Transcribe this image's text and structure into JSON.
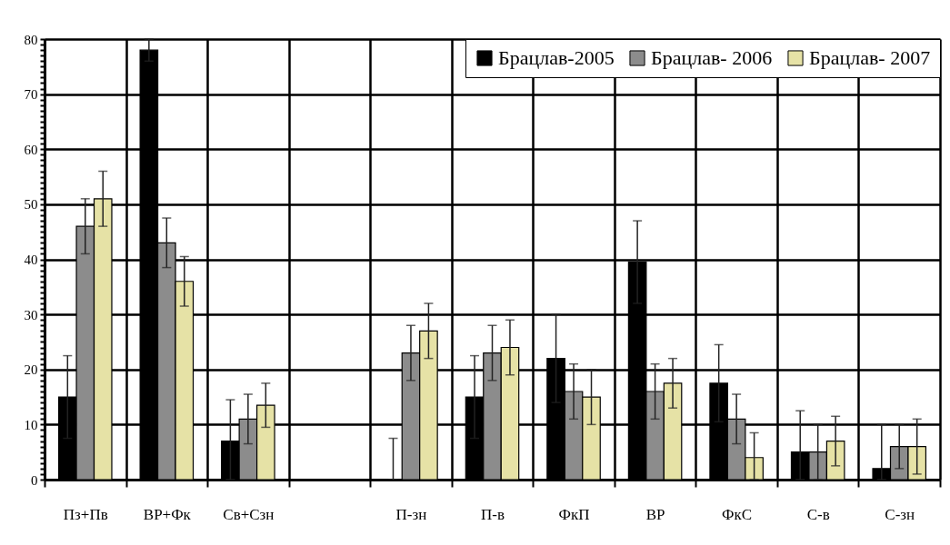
{
  "chart_data": {
    "type": "bar",
    "categories": [
      "Пз+Пв",
      "ВР+Фк",
      "Св+Сзн",
      null,
      "П-зн",
      "П-в",
      "ФкП",
      "ВР",
      "ФкС",
      "С-в",
      "С-зн"
    ],
    "series": [
      {
        "name": "Брацлав-2005",
        "color": "#000000",
        "values": [
          15,
          78,
          7,
          null,
          0,
          15,
          22,
          39.5,
          17.5,
          5,
          2
        ],
        "errors": [
          7.5,
          2,
          [
            0,
            14.5
          ],
          null,
          [
            0,
            7.5
          ],
          7.5,
          8,
          7.5,
          7,
          [
            0,
            12.5
          ],
          [
            0,
            10
          ]
        ]
      },
      {
        "name": "Брацлав- 2006",
        "color": "#8c8c8c",
        "values": [
          46,
          43,
          11,
          null,
          23,
          23,
          16,
          16,
          11,
          5,
          6
        ],
        "errors": [
          5,
          4.5,
          4.5,
          null,
          5,
          5,
          5,
          5,
          4.5,
          5,
          4
        ]
      },
      {
        "name": "Брацлав- 2007",
        "color": "#e6e2a6",
        "values": [
          51,
          36,
          13.5,
          null,
          27,
          24,
          15,
          17.5,
          4,
          7,
          6
        ],
        "errors": [
          5,
          4.5,
          4,
          null,
          5,
          5,
          5,
          4.5,
          [
            0,
            8.5
          ],
          4.5,
          5
        ]
      }
    ],
    "ylim": [
      0,
      80
    ],
    "yticks": [
      0,
      {
        "value": 1,
        "label": null
      },
      {
        "value": 2,
        "label": null
      },
      {
        "value": 3,
        "label": null
      },
      {
        "value": 4,
        "label": null
      },
      {
        "value": 5,
        "label": null
      },
      {
        "value": 6,
        "label": null
      },
      {
        "value": 7,
        "label": null
      },
      {
        "value": 8,
        "label": null
      },
      {
        "value": 9,
        "label": null
      },
      10,
      {
        "value": 11,
        "label": null
      },
      {
        "value": 12,
        "label": null
      },
      {
        "value": 13,
        "label": null
      },
      {
        "value": 14,
        "label": null
      },
      {
        "value": 15,
        "label": null
      },
      {
        "value": 16,
        "label": null
      },
      {
        "value": 17,
        "label": null
      },
      {
        "value": 18,
        "label": null
      },
      {
        "value": 19,
        "label": null
      },
      20,
      {
        "value": 21,
        "label": null
      },
      {
        "value": 22,
        "label": null
      },
      {
        "value": 23,
        "label": null
      },
      {
        "value": 24,
        "label": null
      },
      {
        "value": 25,
        "label": null
      },
      {
        "value": 26,
        "label": null
      },
      {
        "value": 27,
        "label": null
      },
      {
        "value": 28,
        "label": null
      },
      {
        "value": 29,
        "label": null
      },
      30,
      {
        "value": 31,
        "label": null
      },
      {
        "value": 32,
        "label": null
      },
      {
        "value": 33,
        "label": null
      },
      {
        "value": 34,
        "label": null
      },
      {
        "value": 35,
        "label": null
      },
      {
        "value": 36,
        "label": null
      },
      {
        "value": 37,
        "label": null
      },
      {
        "value": 38,
        "label": null
      },
      {
        "value": 39,
        "label": null
      },
      40,
      {
        "value": 41,
        "label": null
      },
      {
        "value": 42,
        "label": null
      },
      {
        "value": 43,
        "label": null
      },
      {
        "value": 44,
        "label": null
      },
      {
        "value": 45,
        "label": null
      },
      {
        "value": 46,
        "label": null
      },
      {
        "value": 47,
        "label": null
      },
      {
        "value": 48,
        "label": null
      },
      {
        "value": 49,
        "label": null
      },
      50,
      {
        "value": 51,
        "label": null
      },
      {
        "value": 52,
        "label": null
      },
      {
        "value": 53,
        "label": null
      },
      {
        "value": 54,
        "label": null
      },
      {
        "value": 55,
        "label": null
      },
      {
        "value": 56,
        "label": null
      },
      {
        "value": 57,
        "label": null
      },
      {
        "value": 58,
        "label": null
      },
      {
        "value": 59,
        "label": null
      },
      60,
      {
        "value": 61,
        "label": null
      },
      {
        "value": 62,
        "label": null
      },
      {
        "value": 63,
        "label": null
      },
      {
        "value": 64,
        "label": null
      },
      {
        "value": 65,
        "label": null
      },
      {
        "value": 66,
        "label": null
      },
      {
        "value": 67,
        "label": null
      },
      {
        "value": 68,
        "label": null
      },
      {
        "value": 69,
        "label": null
      },
      70,
      {
        "value": 71,
        "label": null
      },
      {
        "value": 72,
        "label": null
      },
      {
        "value": 73,
        "label": null
      },
      {
        "value": 74,
        "label": null
      },
      {
        "value": 75,
        "label": null
      },
      {
        "value": 76,
        "label": null
      },
      {
        "value": 77,
        "label": null
      },
      {
        "value": 78,
        "label": null
      },
      {
        "value": 79,
        "label": null
      },
      80
    ],
    "grid": true,
    "legend": "top right"
  }
}
